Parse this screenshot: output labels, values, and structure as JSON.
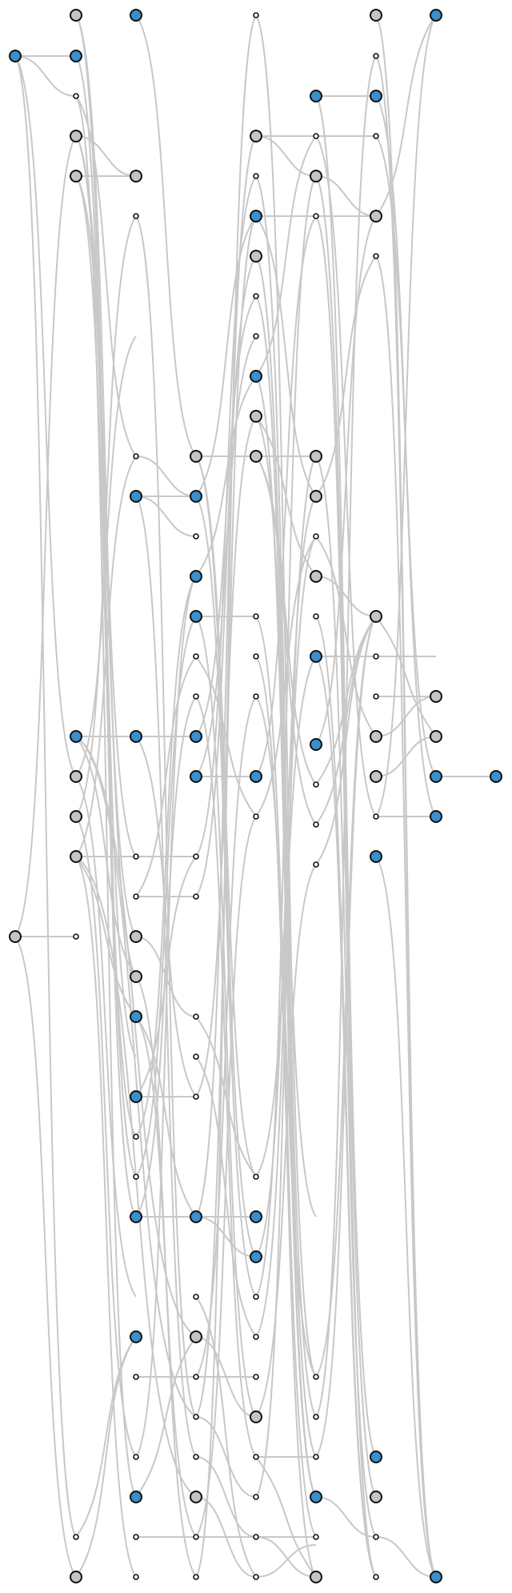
{
  "diagram": {
    "type": "layered-node-link graph",
    "colors": {
      "edge": "#c8c8c8",
      "node_outline": "#111111",
      "blue_node": "#3a8fcc",
      "gray_node": "#c4c4c4",
      "dummy_node": "#ffffff"
    },
    "node_kinds": [
      "blue",
      "gray",
      "dummy"
    ],
    "node_count": 160
  }
}
